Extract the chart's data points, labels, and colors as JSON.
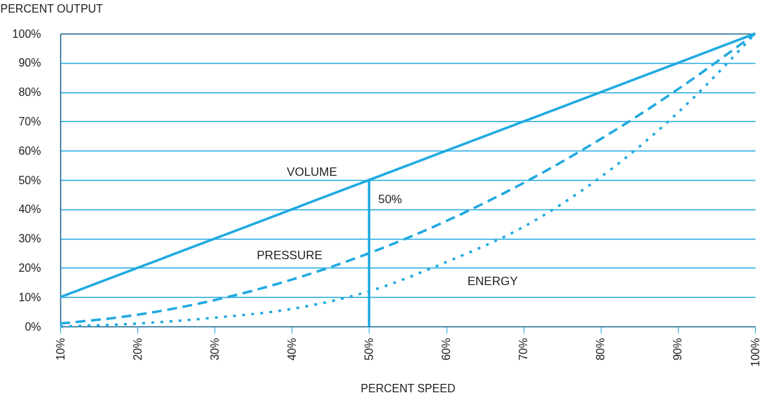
{
  "chart_data": {
    "type": "line",
    "xlabel": "PERCENT SPEED",
    "ylabel": "PERCENT OUTPUT",
    "x": [
      10,
      20,
      30,
      40,
      50,
      60,
      70,
      80,
      90,
      100
    ],
    "series": [
      {
        "name": "VOLUME",
        "color": "#1fa9e1",
        "line_style": "solid",
        "values": [
          10,
          20,
          30,
          40,
          50,
          60,
          70,
          80,
          90,
          100
        ]
      },
      {
        "name": "PRESSURE",
        "color": "#1fa9e1",
        "line_style": "dashed",
        "values": [
          1,
          4,
          9,
          16,
          25,
          36,
          49,
          64,
          81,
          100
        ]
      },
      {
        "name": "ENERGY",
        "color": "#1fa9e1",
        "line_style": "dotted",
        "values": [
          0,
          1,
          3,
          6,
          12,
          22,
          34,
          51,
          73,
          100
        ]
      },
      {
        "name": "50%",
        "color": "#1fa9e1",
        "line_style": "solid",
        "x": [
          50,
          50
        ],
        "values": [
          0,
          50
        ]
      }
    ],
    "xlim": [
      10,
      100
    ],
    "ylim": [
      0,
      100
    ],
    "xticks": [
      {
        "value": 10,
        "label": "10%"
      },
      {
        "value": 20,
        "label": "20%"
      },
      {
        "value": 30,
        "label": "30%"
      },
      {
        "value": 40,
        "label": "40%"
      },
      {
        "value": 50,
        "label": "50%"
      },
      {
        "value": 60,
        "label": "60%"
      },
      {
        "value": 70,
        "label": "70%"
      },
      {
        "value": 80,
        "label": "80%"
      },
      {
        "value": 90,
        "label": "90%"
      },
      {
        "value": 100,
        "label": "100%"
      }
    ],
    "yticks": [
      {
        "value": 0,
        "label": "0%"
      },
      {
        "value": 10,
        "label": "10%"
      },
      {
        "value": 20,
        "label": "20%"
      },
      {
        "value": 30,
        "label": "30%"
      },
      {
        "value": 40,
        "label": "40%"
      },
      {
        "value": 50,
        "label": "50%"
      },
      {
        "value": 60,
        "label": "60%"
      },
      {
        "value": 70,
        "label": "70%"
      },
      {
        "value": 80,
        "label": "80%"
      },
      {
        "value": 90,
        "label": "90%"
      },
      {
        "value": 100,
        "label": "100%"
      }
    ],
    "grid": "y",
    "marker": "none"
  }
}
